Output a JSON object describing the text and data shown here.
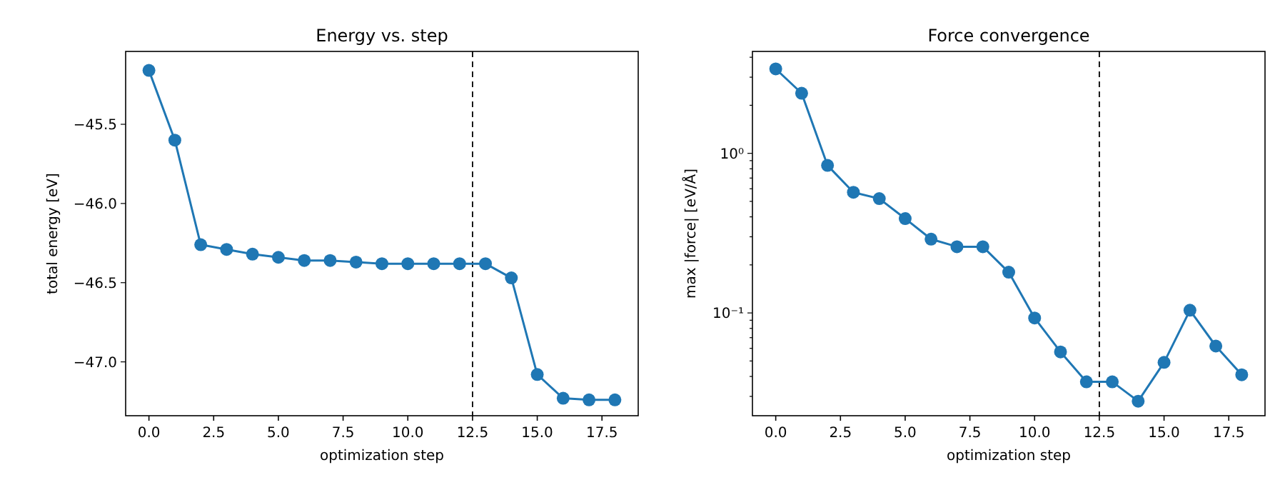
{
  "chart_data": [
    {
      "type": "line",
      "title": "Energy vs. step",
      "xlabel": "optimization step",
      "ylabel": "total energy [eV]",
      "x": [
        0,
        1,
        2,
        3,
        4,
        5,
        6,
        7,
        8,
        9,
        10,
        11,
        12,
        13,
        14,
        15,
        16,
        17,
        18
      ],
      "series": [
        {
          "color": "#1f77b4",
          "values": [
            -45.16,
            -45.6,
            -46.26,
            -46.29,
            -46.32,
            -46.34,
            -46.36,
            -46.36,
            -46.37,
            -46.38,
            -46.38,
            -46.38,
            -46.38,
            -46.38,
            -46.47,
            -47.08,
            -47.23,
            -47.24,
            -47.24
          ]
        }
      ],
      "xlim": [
        -0.9,
        18.9
      ],
      "xticks": [
        {
          "value": 0,
          "label": "0.0"
        },
        2.5,
        {
          "value": 5,
          "label": "5.0"
        },
        7.5,
        {
          "value": 10,
          "label": "10.0"
        },
        12.5,
        {
          "value": 15,
          "label": "15.0"
        },
        17.5
      ],
      "ylim": [
        -47.34,
        -45.04
      ],
      "yticks": [
        {
          "value": -47,
          "label": "−47.0"
        },
        {
          "value": -46.5,
          "label": "−46.5"
        },
        {
          "value": -46,
          "label": "−46.0"
        },
        {
          "value": -45.5,
          "label": "−45.5"
        }
      ],
      "marker": "circle",
      "line_style": "solid",
      "grid": false,
      "ref_lines": [
        {
          "axis": "x",
          "value": 12.5,
          "color": "#000000",
          "line_style": "dashed"
        }
      ]
    },
    {
      "type": "line",
      "title": "Force convergence",
      "xlabel": "optimization step",
      "ylabel": "max |force| [eV/Å]",
      "x": [
        0,
        1,
        2,
        3,
        4,
        5,
        6,
        7,
        8,
        9,
        10,
        11,
        12,
        13,
        14,
        15,
        16,
        17,
        18
      ],
      "series": [
        {
          "color": "#1f77b4",
          "values": [
            3.38,
            2.38,
            0.84,
            0.57,
            0.52,
            0.39,
            0.29,
            0.26,
            0.26,
            0.18,
            0.093,
            0.057,
            0.037,
            0.037,
            0.028,
            0.049,
            0.104,
            0.062,
            0.041
          ]
        }
      ],
      "xlim": [
        -0.9,
        18.9
      ],
      "xticks": [
        {
          "value": 0,
          "label": "0.0"
        },
        2.5,
        {
          "value": 5,
          "label": "5.0"
        },
        7.5,
        {
          "value": 10,
          "label": "10.0"
        },
        12.5,
        {
          "value": 15,
          "label": "15.0"
        },
        17.5
      ],
      "ylim": [
        0.0227,
        4.35
      ],
      "log": "y",
      "yticks": [
        {
          "value": 0.03,
          "label": null
        },
        {
          "value": 0.04,
          "label": null
        },
        {
          "value": 0.05,
          "label": null
        },
        {
          "value": 0.06,
          "label": null
        },
        {
          "value": 0.07,
          "label": null
        },
        {
          "value": 0.08,
          "label": null
        },
        {
          "value": 0.09,
          "label": null
        },
        {
          "value": 0.1,
          "label": "10⁻¹"
        },
        {
          "value": 0.2,
          "label": null
        },
        {
          "value": 0.3,
          "label": null
        },
        {
          "value": 0.4,
          "label": null
        },
        {
          "value": 0.5,
          "label": null
        },
        {
          "value": 0.6,
          "label": null
        },
        {
          "value": 0.7,
          "label": null
        },
        {
          "value": 0.8,
          "label": null
        },
        {
          "value": 0.9,
          "label": null
        },
        {
          "value": 1,
          "label": "10⁰"
        },
        {
          "value": 2,
          "label": null
        },
        {
          "value": 3,
          "label": null
        },
        {
          "value": 4,
          "label": null
        }
      ],
      "marker": "circle",
      "line_style": "solid",
      "grid": false,
      "ref_lines": [
        {
          "axis": "x",
          "value": 12.5,
          "color": "#000000",
          "line_style": "dashed"
        }
      ]
    }
  ]
}
